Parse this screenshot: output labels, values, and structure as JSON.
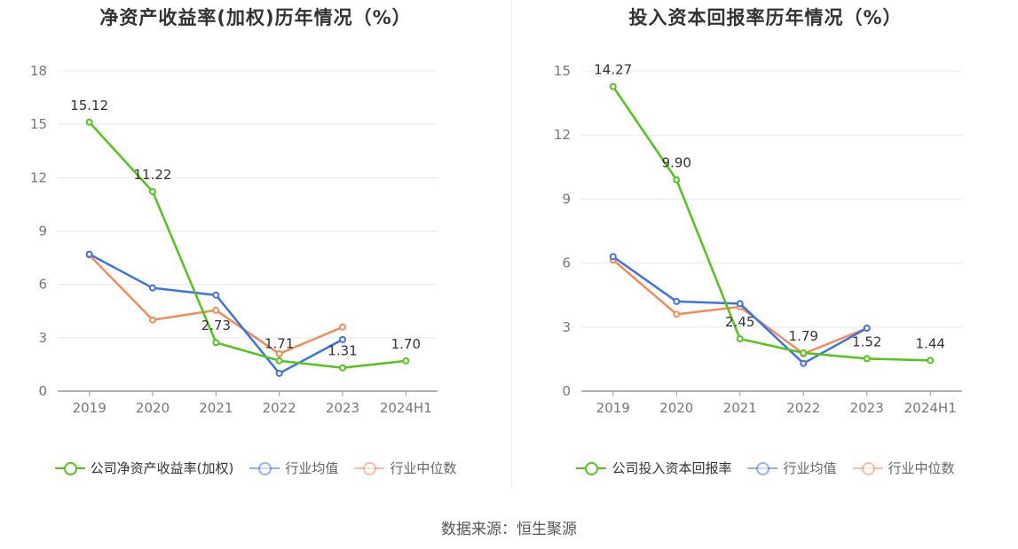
{
  "colors": {
    "company": "#52c41a",
    "avg": "#3f72e3",
    "median": "#f28b5a",
    "grid": "#e6e8f2",
    "axis": "#999999"
  },
  "source": "数据来源：恒生聚源",
  "chart_data": [
    {
      "type": "line",
      "title": "净资产收益率(加权)历年情况（%）",
      "categories": [
        "2019",
        "2020",
        "2021",
        "2022",
        "2023",
        "2024H1"
      ],
      "y_ticks": [
        0,
        3,
        6,
        9,
        12,
        15,
        18
      ],
      "ylim": [
        0,
        18
      ],
      "series": [
        {
          "name": "公司净资产收益率(加权)",
          "key": "company",
          "values": [
            15.12,
            11.22,
            2.73,
            1.71,
            1.31,
            1.7
          ],
          "labels": [
            "15.12",
            "11.22",
            "2.73",
            "1.71",
            "1.31",
            "1.70"
          ]
        },
        {
          "name": "行业均值",
          "key": "avg",
          "values": [
            7.7,
            5.8,
            5.4,
            1.0,
            2.9,
            null
          ]
        },
        {
          "name": "行业中位数",
          "key": "median",
          "values": [
            7.65,
            4.0,
            4.55,
            2.1,
            3.6,
            null
          ]
        }
      ]
    },
    {
      "type": "line",
      "title": "投入资本回报率历年情况（%）",
      "categories": [
        "2019",
        "2020",
        "2021",
        "2022",
        "2023",
        "2024H1"
      ],
      "y_ticks": [
        0,
        3,
        6,
        9,
        12,
        15
      ],
      "ylim": [
        0,
        15
      ],
      "series": [
        {
          "name": "公司投入资本回报率",
          "key": "company",
          "values": [
            14.27,
            9.9,
            2.45,
            1.79,
            1.52,
            1.44
          ],
          "labels": [
            "14.27",
            "9.90",
            "2.45",
            "1.79",
            "1.52",
            "1.44"
          ]
        },
        {
          "name": "行业均值",
          "key": "avg",
          "values": [
            6.3,
            4.2,
            4.1,
            1.3,
            2.95,
            null
          ]
        },
        {
          "name": "行业中位数",
          "key": "median",
          "values": [
            6.15,
            3.6,
            3.95,
            1.75,
            2.95,
            null
          ]
        }
      ]
    }
  ]
}
